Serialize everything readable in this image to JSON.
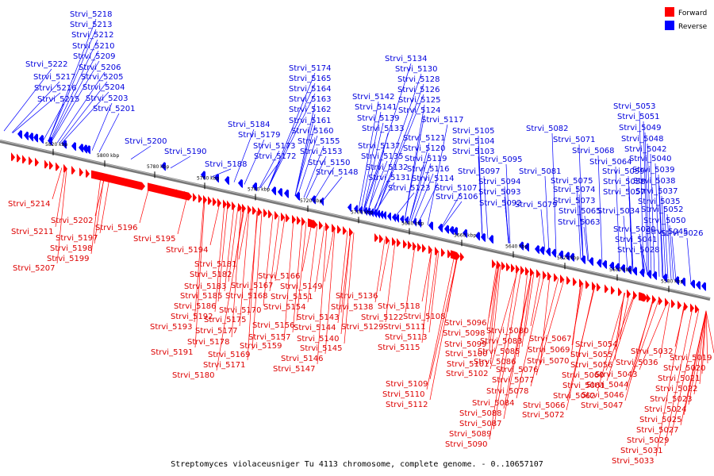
{
  "caption": "Streptomyces violaceusniger Tu 4113 chromosome, complete genome. - 0..10657107",
  "legend": {
    "items": [
      {
        "label": "Forward",
        "color": "#ff0000"
      },
      {
        "label": "Reverse",
        "color": "#0000ff"
      }
    ]
  },
  "colors": {
    "forward": "#ff0000",
    "reverse": "#0000ff",
    "forward_text": "#dd0000",
    "reverse_text": "#0000dd",
    "backbone": "#555555"
  },
  "ticks": [
    "5820 kbp",
    "5800 kbp",
    "5780 kbp",
    "5760 kbp",
    "5740 kbp",
    "5720 kbp",
    "5700 kbp",
    "5680 kbp",
    "5660 kbp",
    "5640 kbp",
    "5620 kbp",
    "5600 kbp",
    "5580 kbp"
  ],
  "reverse_labels": [
    "Strvi_5218",
    "Strvi_5213",
    "Strvi_5212",
    "Strvi_5210",
    "Strvi_5209",
    "Strvi_5222",
    "Strvi_5206",
    "Strvi_5217",
    "Strvi_5205",
    "Strvi_5216",
    "Strvi_5204",
    "Strvi_5215",
    "Strvi_5203",
    "Strvi_5201",
    "Strvi_5200",
    "Strvi_5190",
    "Strvi_5188",
    "Strvi_5174",
    "Strvi_5165",
    "Strvi_5164",
    "Strvi_5163",
    "Strvi_5162",
    "Strvi_5161",
    "Strvi_5184",
    "Strvi_5160",
    "Strvi_5179",
    "Strvi_5155",
    "Strvi_5173",
    "Strvi_5153",
    "Strvi_5172",
    "Strvi_5150",
    "Strvi_5148",
    "Strvi_5134",
    "Strvi_5130",
    "Strvi_5128",
    "Strvi_5126",
    "Strvi_5142",
    "Strvi_5125",
    "Strvi_5141",
    "Strvi_5124",
    "Strvi_5139",
    "Strvi_5117",
    "Strvi_5133",
    "Strvi_5121",
    "Strvi_5137",
    "Strvi_5120",
    "Strvi_5135",
    "Strvi_5119",
    "Strvi_5132",
    "Strvi_5116",
    "Strvi_5131",
    "Strvi_5114",
    "Strvi_5123",
    "Strvi_5107",
    "Strvi_5106",
    "Strvi_5105",
    "Strvi_5104",
    "Strvi_5103",
    "Strvi_5095",
    "Strvi_5097",
    "Strvi_5094",
    "Strvi_5093",
    "Strvi_5092",
    "Strvi_5082",
    "Strvi_5071",
    "Strvi_5068",
    "Strvi_5064",
    "Strvi_5081",
    "Strvi_5075",
    "Strvi_5074",
    "Strvi_5073",
    "Strvi_5079",
    "Strvi_5059",
    "Strvi_5058",
    "Strvi_5057",
    "Strvi_5065",
    "Strvi_5063",
    "Strvi_5053",
    "Strvi_5051",
    "Strvi_5049",
    "Strvi_5048",
    "Strvi_5042",
    "Strvi_5040",
    "Strvi_5039",
    "Strvi_5038",
    "Strvi_5037",
    "Strvi_5035",
    "Strvi_5052",
    "Strvi_5034",
    "Strvi_5050",
    "Strvi_5030",
    "Strvi_5045",
    "Strvi_5041",
    "Strvi_5028",
    "Strvi_5026"
  ],
  "forward_labels": [
    "Strvi_5214",
    "Strvi_5202",
    "Strvi_5211",
    "Strvi_5197",
    "Strvi_5196",
    "Strvi_5198",
    "Strvi_5195",
    "Strvi_5199",
    "Strvi_5207",
    "Strvi_5194",
    "Strvi_5181",
    "Strvi_5166",
    "Strvi_5182",
    "Strvi_5183",
    "Strvi_5167",
    "Strvi_5149",
    "Strvi_5185",
    "Strvi_5168",
    "Strvi_5151",
    "Strvi_5186",
    "Strvi_5170",
    "Strvi_5154",
    "Strvi_5136",
    "Strvi_5192",
    "Strvi_5175",
    "Strvi_5138",
    "Strvi_5193",
    "Strvi_5177",
    "Strvi_5156",
    "Strvi_5143",
    "Strvi_5178",
    "Strvi_5157",
    "Strvi_5144",
    "Strvi_5191",
    "Strvi_5159",
    "Strvi_5140",
    "Strvi_5169",
    "Strvi_5145",
    "Strvi_5171",
    "Strvi_5146",
    "Strvi_5147",
    "Strvi_5180",
    "Strvi_5129",
    "Strvi_5122",
    "Strvi_5118",
    "Strvi_5108",
    "Strvi_5111",
    "Strvi_5113",
    "Strvi_5115",
    "Strvi_5109",
    "Strvi_5110",
    "Strvi_5112",
    "Strvi_5096",
    "Strvi_5098",
    "Strvi_5099",
    "Strvi_5100",
    "Strvi_5101",
    "Strvi_5102",
    "Strvi_5080",
    "Strvi_5083",
    "Strvi_5085",
    "Strvi_5086",
    "Strvi_5076",
    "Strvi_5077",
    "Strvi_5078",
    "Strvi_5084",
    "Strvi_5088",
    "Strvi_5087",
    "Strvi_5089",
    "Strvi_5090",
    "Strvi_5067",
    "Strvi_5069",
    "Strvi_5070",
    "Strvi_5072",
    "Strvi_5066",
    "Strvi_5054",
    "Strvi_5055",
    "Strvi_5056",
    "Strvi_5060",
    "Strvi_5061",
    "Strvi_5062",
    "Strvi_5043",
    "Strvi_5044",
    "Strvi_5046",
    "Strvi_5047",
    "Strvi_5032",
    "Strvi_5036",
    "Strvi_5019",
    "Strvi_5020",
    "Strvi_5021",
    "Strvi_5022",
    "Strvi_5023",
    "Strvi_5024",
    "Strvi_5025",
    "Strvi_5027",
    "Strvi_5029",
    "Strvi_5031",
    "Strvi_5033"
  ]
}
